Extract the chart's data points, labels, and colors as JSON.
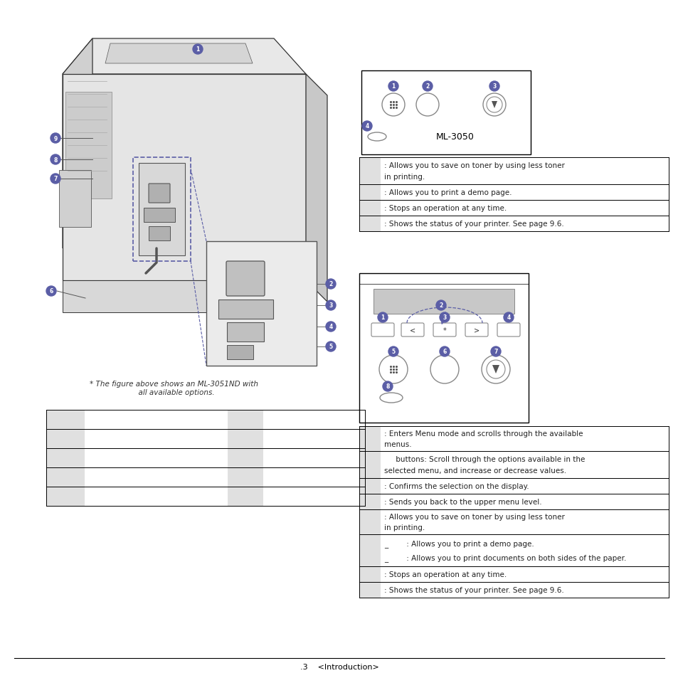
{
  "page_bg": "#ffffff",
  "footer_text": ".3    <Introduction>",
  "badge_color": "#5b5ea6",
  "badge_text_color": "#ffffff",
  "table_gray_bg": "#e0e0e0",
  "table_text_color": "#222222",
  "ml3050_label": "ML-3050",
  "right_table1_rows": [
    [
      ": Allows you to save on toner by using less toner",
      "in printing."
    ],
    [
      ": Allows you to print a demo page.",
      ""
    ],
    [
      ": Stops an operation at any time.",
      ""
    ],
    [
      ": Shows the status of your printer. See page 9.6.",
      ""
    ]
  ],
  "right_table2_rows": [
    [
      ": Enters Menu mode and scrolls through the available",
      "menus."
    ],
    [
      "     buttons: Scroll through the options available in the",
      "selected menu, and increase or decrease values."
    ],
    [
      ": Confirms the selection on the display.",
      ""
    ],
    [
      ": Sends you back to the upper menu level.",
      ""
    ],
    [
      ": Allows you to save on toner by using less toner",
      "in printing."
    ],
    [
      "_        : Allows you to print a demo page.",
      "_        : Allows you to print documents on both sides of the paper."
    ],
    [
      ": Stops an operation at any time.",
      ""
    ],
    [
      ": Shows the status of your printer. See page 9.6.",
      ""
    ]
  ],
  "note_text": "* The figure above shows an ML-3051ND with\n  all available options."
}
